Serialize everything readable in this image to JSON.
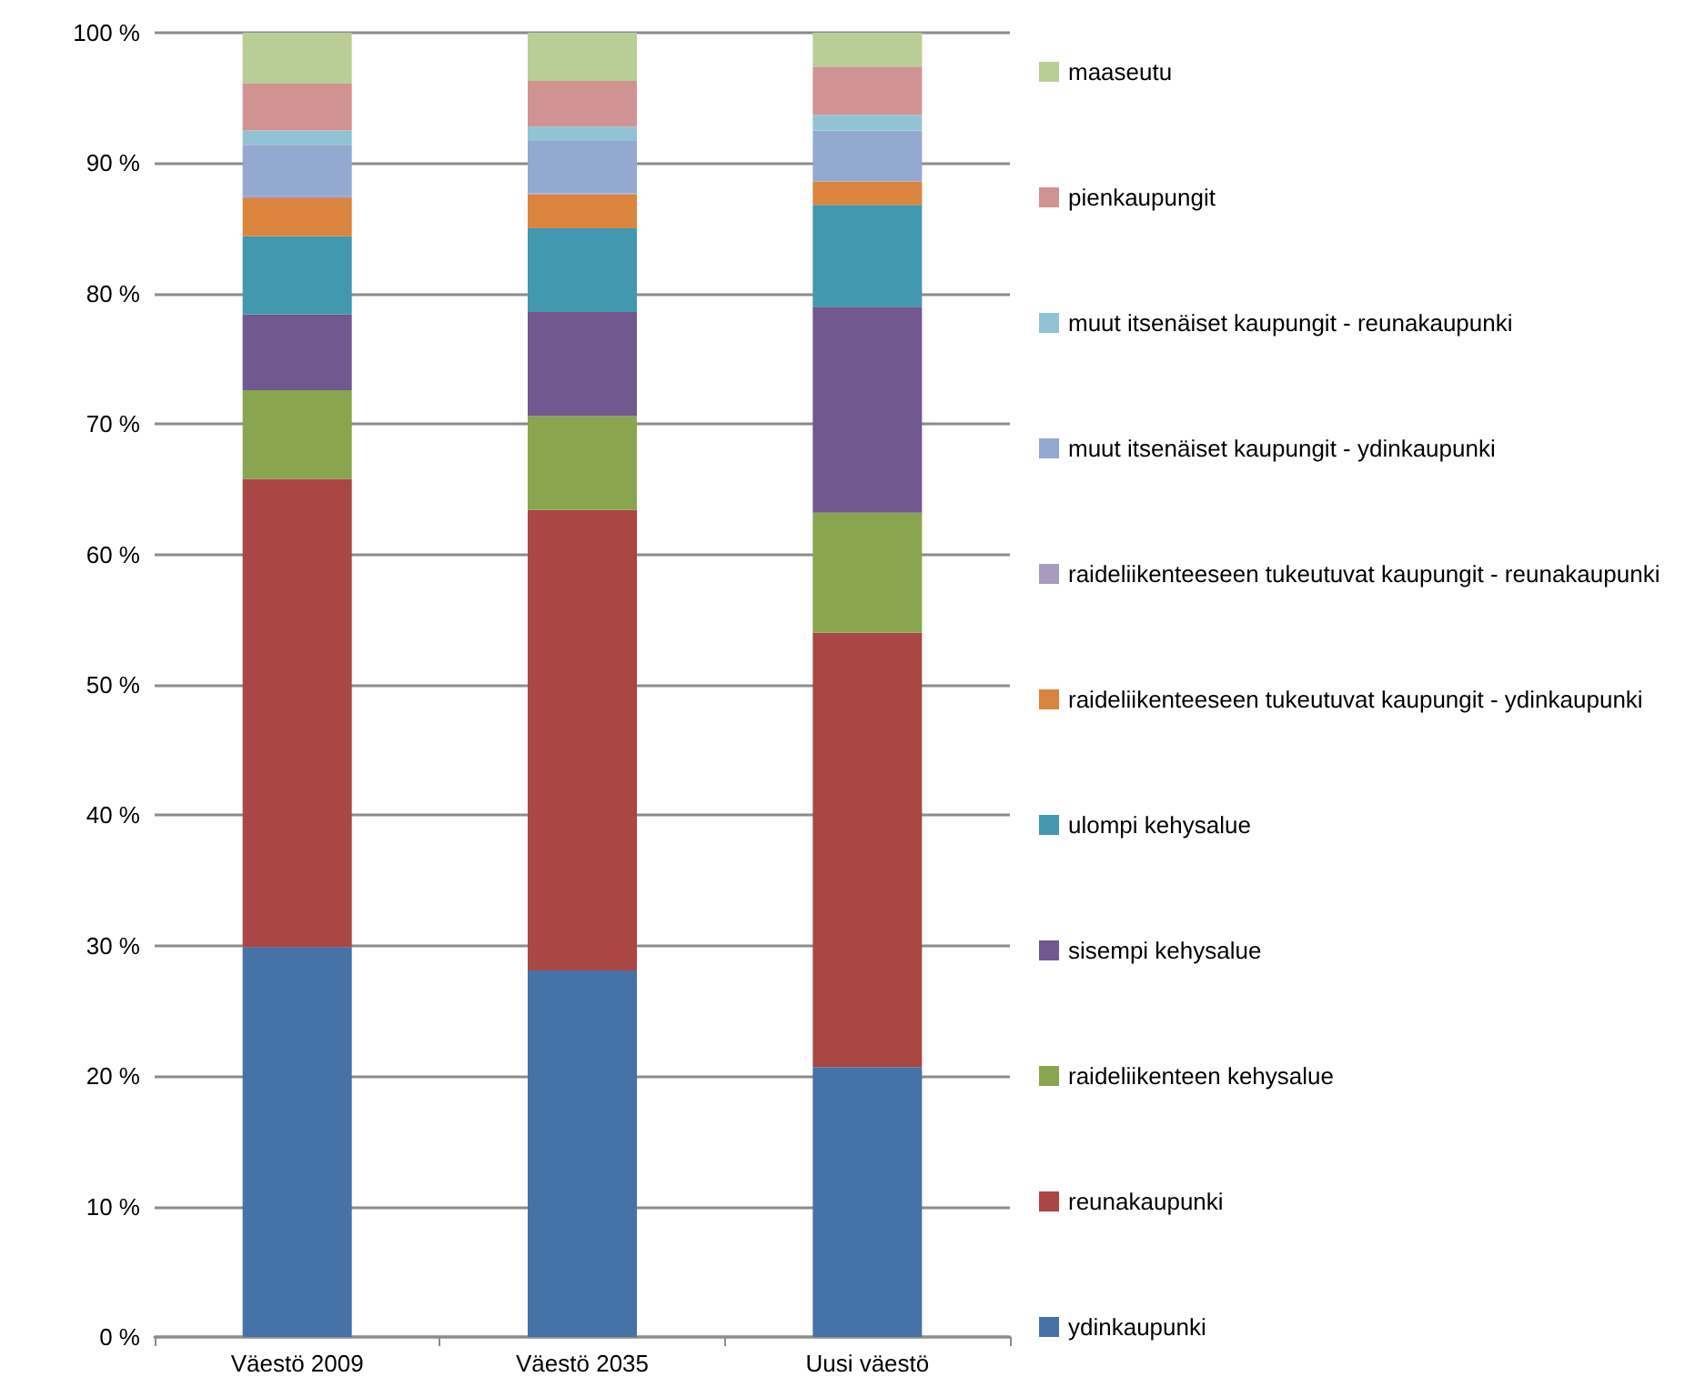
{
  "chart_data": {
    "type": "bar",
    "stacked": true,
    "categories": [
      "Väestö 2009",
      "Väestö 2035",
      "Uusi väestö"
    ],
    "ylim": [
      0,
      100
    ],
    "yticks": [
      {
        "value": 0,
        "label": "0 %"
      },
      {
        "value": 10,
        "label": "10 %"
      },
      {
        "value": 20,
        "label": "20 %"
      },
      {
        "value": 30,
        "label": "30 %"
      },
      {
        "value": 40,
        "label": "40 %"
      },
      {
        "value": 50,
        "label": "50 %"
      },
      {
        "value": 60,
        "label": "60 %"
      },
      {
        "value": 70,
        "label": "70 %"
      },
      {
        "value": 80,
        "label": "80 %"
      },
      {
        "value": 90,
        "label": "90 %"
      },
      {
        "value": 100,
        "label": "100 %"
      }
    ],
    "grid": "y",
    "legend": "right",
    "series": [
      {
        "name": "ydinkaupunki",
        "color": "#4572a7",
        "values": [
          29.9,
          28.1,
          20.7
        ]
      },
      {
        "name": "reunakaupunki",
        "color": "#aa4643",
        "values": [
          35.9,
          35.3,
          33.3
        ]
      },
      {
        "name": "raideliikenteen kehysalue",
        "color": "#89a54e",
        "values": [
          6.8,
          7.2,
          9.2
        ]
      },
      {
        "name": "sisempi kehysalue",
        "color": "#71588f",
        "values": [
          5.8,
          8.0,
          15.8
        ]
      },
      {
        "name": "ulompi kehysalue",
        "color": "#4198af",
        "values": [
          6.0,
          6.4,
          7.8
        ]
      },
      {
        "name": "raideliikenteeseen tukeutuvat kaupungit - ydinkaupunki",
        "color": "#db843d",
        "values": [
          2.9,
          2.6,
          1.8
        ]
      },
      {
        "name": "raideliikenteeseen tukeutuvat kaupungit - reunakaupunki",
        "color": "#a99bbd",
        "values": [
          0.2,
          0.1,
          0
        ]
      },
      {
        "name": "muut itsenäiset kaupungit - ydinkaupunki",
        "color": "#93a9cf",
        "values": [
          3.9,
          4.0,
          3.9
        ]
      },
      {
        "name": "muut itsenäiset kaupungit - reunakaupunki",
        "color": "#92c3d4",
        "values": [
          1.1,
          1.1,
          1.2
        ]
      },
      {
        "name": "pienkaupungit",
        "color": "#d19392",
        "values": [
          3.6,
          3.5,
          3.7
        ]
      },
      {
        "name": "maaseutu",
        "color": "#b9cd96",
        "values": [
          3.9,
          3.7,
          2.6
        ]
      }
    ]
  }
}
